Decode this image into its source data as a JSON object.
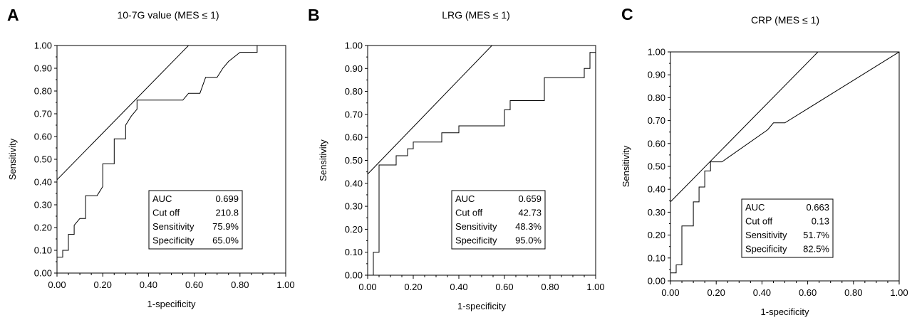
{
  "figure": {
    "panels": [
      {
        "letter": "A"
      },
      {
        "letter": "B"
      },
      {
        "letter": "C"
      }
    ]
  },
  "chart_data": [
    {
      "type": "line",
      "title": "10-7G value (MES ≤ 1)",
      "xlabel": "1-specificity",
      "ylabel": "Sensitivity",
      "xlim": [
        0,
        1
      ],
      "ylim": [
        0,
        1
      ],
      "xticks": [
        "0.00",
        "0.20",
        "0.40",
        "0.60",
        "0.80",
        "1.00"
      ],
      "yticks": [
        "0.00",
        "0.10",
        "0.20",
        "0.30",
        "0.40",
        "0.50",
        "0.60",
        "0.70",
        "0.80",
        "0.90",
        "1.00"
      ],
      "series": [
        {
          "role": "roc",
          "points": [
            [
              0,
              0
            ],
            [
              0,
              0.07
            ],
            [
              0.025,
              0.07
            ],
            [
              0.025,
              0.1
            ],
            [
              0.05,
              0.1
            ],
            [
              0.05,
              0.17
            ],
            [
              0.075,
              0.17
            ],
            [
              0.075,
              0.21
            ],
            [
              0.1,
              0.24
            ],
            [
              0.125,
              0.24
            ],
            [
              0.125,
              0.34
            ],
            [
              0.175,
              0.34
            ],
            [
              0.2,
              0.38
            ],
            [
              0.2,
              0.48
            ],
            [
              0.25,
              0.48
            ],
            [
              0.25,
              0.59
            ],
            [
              0.3,
              0.59
            ],
            [
              0.3,
              0.65
            ],
            [
              0.325,
              0.69
            ],
            [
              0.35,
              0.72
            ],
            [
              0.35,
              0.76
            ],
            [
              0.55,
              0.76
            ],
            [
              0.575,
              0.79
            ],
            [
              0.625,
              0.79
            ],
            [
              0.65,
              0.86
            ],
            [
              0.7,
              0.86
            ],
            [
              0.725,
              0.9
            ],
            [
              0.75,
              0.93
            ],
            [
              0.8,
              0.97
            ],
            [
              0.875,
              0.97
            ],
            [
              0.875,
              1
            ],
            [
              1,
              1
            ]
          ]
        },
        {
          "role": "tangent",
          "points": [
            [
              0,
              0.41
            ],
            [
              0.575,
              1
            ]
          ]
        }
      ],
      "stats": [
        {
          "label": "AUC",
          "value": "0.699"
        },
        {
          "label": "Cut off",
          "value": "210.8"
        },
        {
          "label": "Sensitivity",
          "value": "75.9%"
        },
        {
          "label": "Specificity",
          "value": "65.0%"
        }
      ]
    },
    {
      "type": "line",
      "title": "LRG (MES ≤ 1)",
      "xlabel": "1-specificity",
      "ylabel": "Sensitivity",
      "xlim": [
        0,
        1
      ],
      "ylim": [
        0,
        1
      ],
      "xticks": [
        "0.00",
        "0.20",
        "0.40",
        "0.60",
        "0.80",
        "1.00"
      ],
      "yticks": [
        "0.00",
        "0.10",
        "0.20",
        "0.30",
        "0.40",
        "0.50",
        "0.60",
        "0.70",
        "0.80",
        "0.90",
        "1.00"
      ],
      "series": [
        {
          "role": "roc",
          "points": [
            [
              0,
              0
            ],
            [
              0.025,
              0
            ],
            [
              0.025,
              0.1
            ],
            [
              0.05,
              0.1
            ],
            [
              0.05,
              0.48
            ],
            [
              0.125,
              0.48
            ],
            [
              0.125,
              0.52
            ],
            [
              0.175,
              0.52
            ],
            [
              0.175,
              0.55
            ],
            [
              0.2,
              0.55
            ],
            [
              0.2,
              0.58
            ],
            [
              0.325,
              0.58
            ],
            [
              0.325,
              0.62
            ],
            [
              0.4,
              0.62
            ],
            [
              0.4,
              0.65
            ],
            [
              0.6,
              0.65
            ],
            [
              0.6,
              0.72
            ],
            [
              0.625,
              0.72
            ],
            [
              0.625,
              0.76
            ],
            [
              0.775,
              0.76
            ],
            [
              0.775,
              0.86
            ],
            [
              0.95,
              0.86
            ],
            [
              0.95,
              0.9
            ],
            [
              0.975,
              0.9
            ],
            [
              0.975,
              0.97
            ],
            [
              1,
              0.97
            ],
            [
              1,
              1
            ]
          ]
        },
        {
          "role": "tangent",
          "points": [
            [
              0,
              0.44
            ],
            [
              0.545,
              1
            ]
          ]
        }
      ],
      "stats": [
        {
          "label": "AUC",
          "value": "0.659"
        },
        {
          "label": "Cut off",
          "value": "42.73"
        },
        {
          "label": "Sensitivity",
          "value": "48.3%"
        },
        {
          "label": "Specificity",
          "value": "95.0%"
        }
      ]
    },
    {
      "type": "line",
      "title": "CRP (MES ≤ 1)",
      "xlabel": "1-specificity",
      "ylabel": "Sensitivity",
      "xlim": [
        0,
        1
      ],
      "ylim": [
        0,
        1
      ],
      "xticks": [
        "0.00",
        "0.20",
        "0.40",
        "0.60",
        "0.80",
        "1.00"
      ],
      "yticks": [
        "0.00",
        "0.10",
        "0.20",
        "0.30",
        "0.40",
        "0.50",
        "0.60",
        "0.70",
        "0.80",
        "0.90",
        "1.00"
      ],
      "series": [
        {
          "role": "roc",
          "points": [
            [
              0,
              0
            ],
            [
              0,
              0.035
            ],
            [
              0.025,
              0.035
            ],
            [
              0.025,
              0.07
            ],
            [
              0.05,
              0.07
            ],
            [
              0.05,
              0.24
            ],
            [
              0.1,
              0.24
            ],
            [
              0.1,
              0.345
            ],
            [
              0.125,
              0.345
            ],
            [
              0.125,
              0.41
            ],
            [
              0.15,
              0.41
            ],
            [
              0.15,
              0.48
            ],
            [
              0.175,
              0.48
            ],
            [
              0.175,
              0.52
            ],
            [
              0.225,
              0.52
            ],
            [
              0.425,
              0.66
            ],
            [
              0.45,
              0.69
            ],
            [
              0.5,
              0.69
            ],
            [
              1,
              1
            ]
          ]
        },
        {
          "role": "tangent",
          "points": [
            [
              0,
              0.345
            ],
            [
              0.645,
              1
            ]
          ]
        }
      ],
      "stats": [
        {
          "label": "AUC",
          "value": "0.663"
        },
        {
          "label": "Cut off",
          "value": "0.13"
        },
        {
          "label": "Sensitivity",
          "value": "51.7%"
        },
        {
          "label": "Specificity",
          "value": "82.5%"
        }
      ]
    }
  ]
}
